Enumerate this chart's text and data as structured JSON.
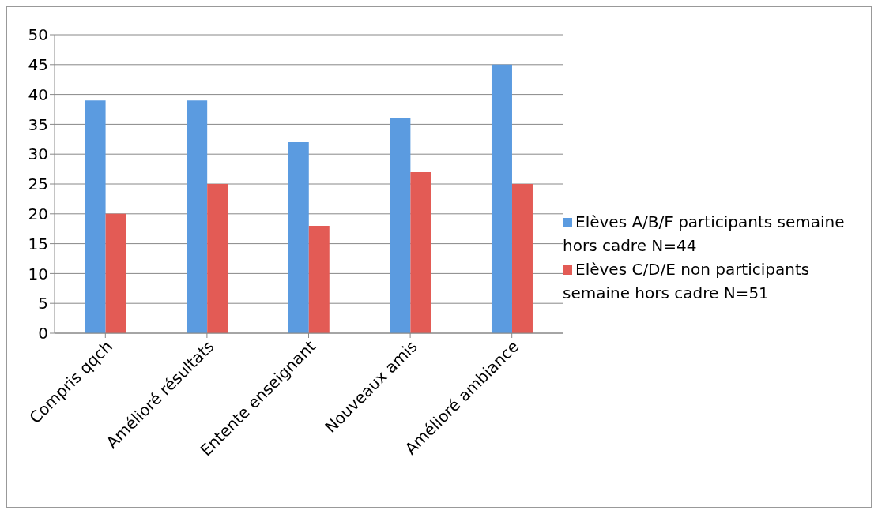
{
  "chart_data": {
    "type": "bar",
    "categories": [
      "Compris qqch",
      "Amélioré résultats",
      "Entente enseignant",
      "Nouveaux amis",
      "Amélioré ambiance"
    ],
    "series": [
      {
        "name": "Elèves A/B/F participants semaine hors cadre N=44",
        "color": "#5b9be0",
        "values": [
          39,
          39,
          32,
          36,
          45
        ]
      },
      {
        "name": "Elèves C/D/E non participants semaine hors cadre N=51",
        "color": "#e35b55",
        "values": [
          20,
          25,
          18,
          27,
          25
        ]
      }
    ],
    "ylim": [
      0,
      50
    ],
    "yticks": [
      0,
      5,
      10,
      15,
      20,
      25,
      30,
      35,
      40,
      45,
      50
    ],
    "grid": "y",
    "legend": "right"
  }
}
